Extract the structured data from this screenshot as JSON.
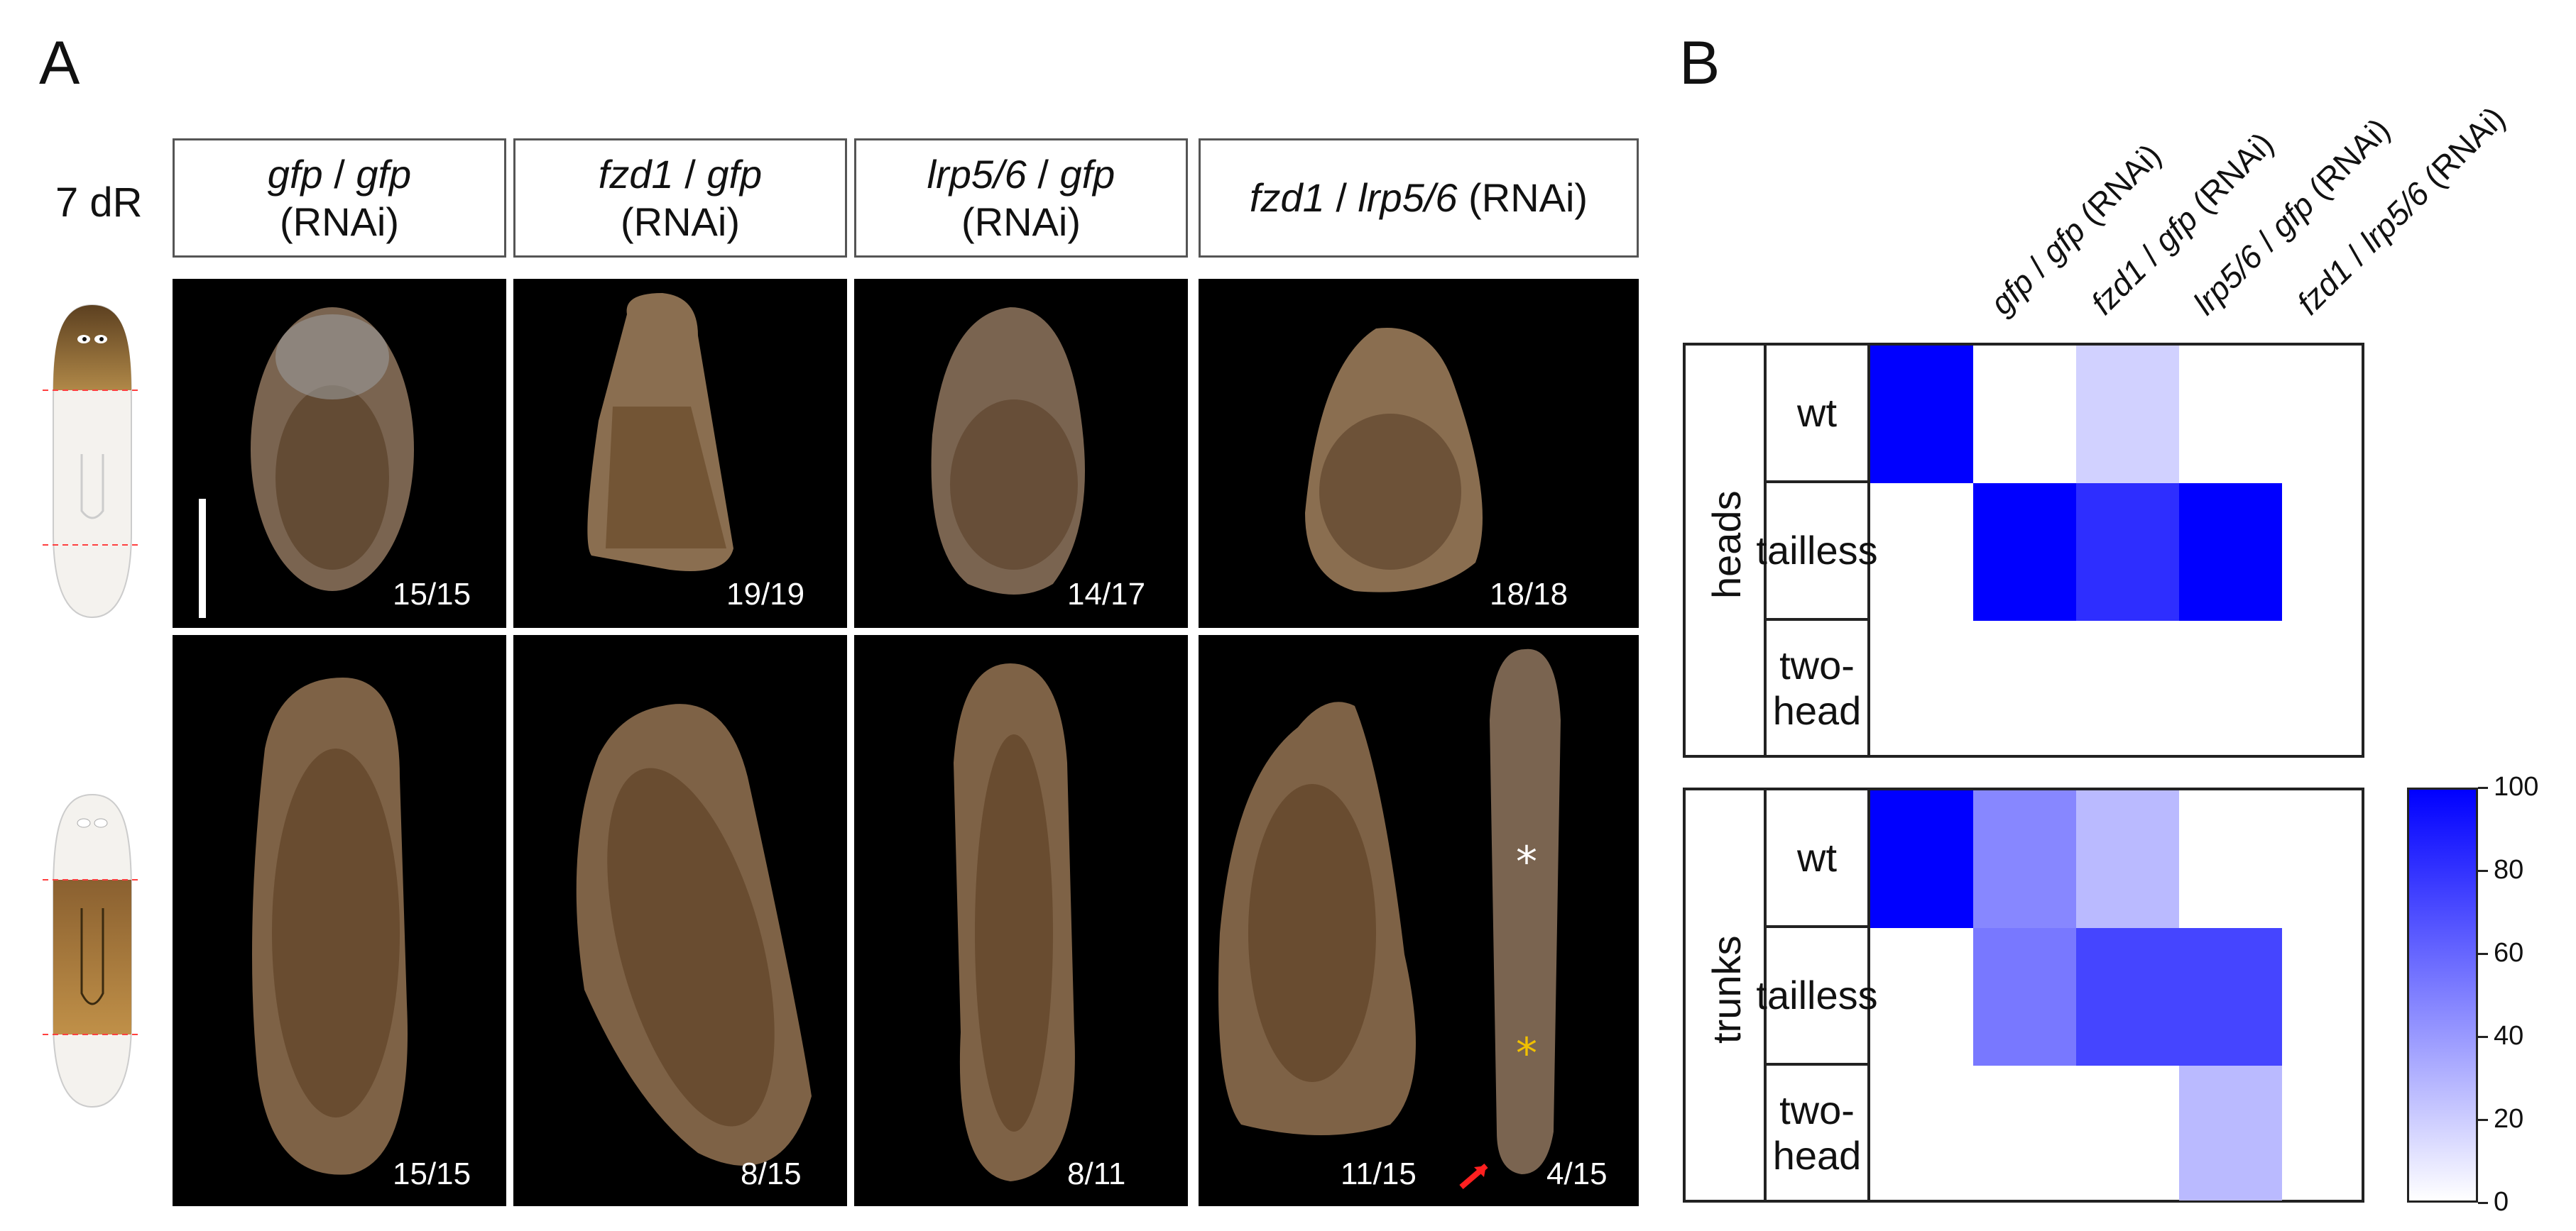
{
  "panel_a": {
    "letter": "A",
    "row_label": "7 dR",
    "columns": [
      {
        "g1": "gfp",
        "sep": " / ",
        "g2": "gfp",
        "suffix": "(RNAi)"
      },
      {
        "g1": "fzd1",
        "sep": " / ",
        "g2": "gfp",
        "suffix": "(RNAi)"
      },
      {
        "g1": "lrp5/6",
        "sep": " / ",
        "g2": "gfp",
        "suffix": "(RNAi)"
      },
      {
        "g1": "fzd1",
        "sep": " / ",
        "g2": "lrp5/6",
        "suffix": " (RNAi)"
      }
    ],
    "counts_heads": [
      "15/15",
      "19/19",
      "14/17",
      "18/18"
    ],
    "counts_trunks": [
      "15/15",
      "8/15",
      "8/11",
      "11/15",
      "4/15"
    ]
  },
  "panel_b": {
    "letter": "B",
    "col_labels": [
      {
        "g1": "gfp",
        "g2": "gfp",
        "suffix": " (RNAi)"
      },
      {
        "g1": "fzd1",
        "g2": "gfp",
        "suffix": " (RNAi)"
      },
      {
        "g1": "lrp5/6",
        "g2": "gfp",
        "suffix": " (RNAi)"
      },
      {
        "g1": "fzd1",
        "g2": "lrp5/6",
        "suffix": " (RNAi)"
      }
    ],
    "groups": [
      "heads",
      "trunks"
    ],
    "row_labels": {
      "wt": "wt",
      "tailless": "tailless",
      "two_head_1": "two-",
      "two_head_2": "head"
    },
    "colorbar_ticks": [
      "100",
      "80",
      "60",
      "40",
      "20",
      "0"
    ]
  },
  "chart_data": {
    "type": "heatmap",
    "columns": [
      "gfp / gfp (RNAi)",
      "fzd1 / gfp (RNAi)",
      "lrp5/6 / gfp (RNAi)",
      "fzd1 / lrp5/6 (RNAi)"
    ],
    "rows": [
      "wt",
      "tailless",
      "two-head"
    ],
    "colorbar_range": [
      0,
      100
    ],
    "colormap": [
      "#ffffff",
      "#0000ff"
    ],
    "heads": [
      [
        100,
        0,
        18,
        0
      ],
      [
        0,
        100,
        82,
        100
      ],
      [
        0,
        0,
        0,
        0
      ]
    ],
    "trunks": [
      [
        100,
        47,
        27,
        0
      ],
      [
        0,
        53,
        73,
        73
      ],
      [
        0,
        0,
        0,
        27
      ]
    ]
  }
}
